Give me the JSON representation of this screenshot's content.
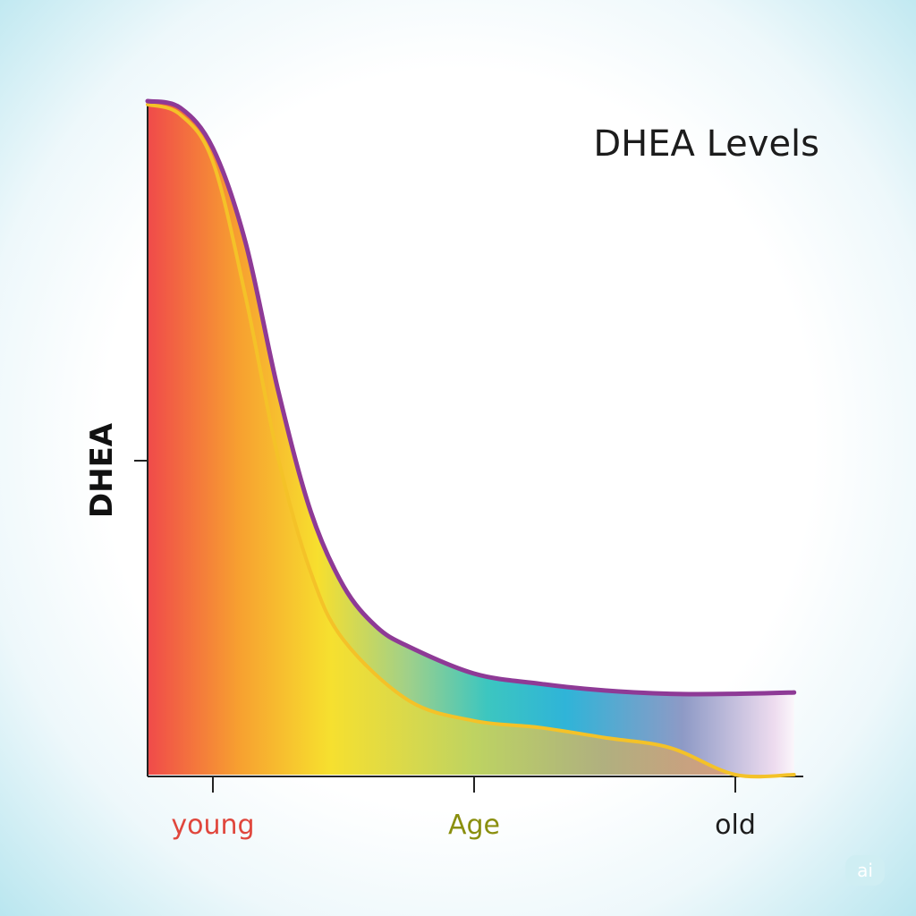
{
  "chart_data": {
    "type": "area",
    "title": "DHEA Levels",
    "ylabel": "DHEA",
    "xlabel": "Age",
    "x_ticks": [
      {
        "label": "young",
        "x": 0.1,
        "color": "#e0463c"
      },
      {
        "label": "Age",
        "x": 0.5,
        "color": "#8a8f0e"
      },
      {
        "label": "old",
        "x": 0.9,
        "color": "#1c1c1c"
      }
    ],
    "xlim": [
      0,
      1
    ],
    "ylim": [
      0,
      1
    ],
    "grid": false,
    "series": [
      {
        "x": [
          0,
          0.05,
          0.1,
          0.15,
          0.2,
          0.25,
          0.3,
          0.4,
          0.5,
          0.6,
          0.7,
          0.8,
          0.9,
          0.99
        ],
        "y": [
          0.995,
          0.98,
          0.91,
          0.71,
          0.47,
          0.3,
          0.2,
          0.11,
          0.08,
          0.07,
          0.055,
          0.04,
          0.0,
          0.0
        ],
        "color": "#f4c228"
      },
      {
        "x": [
          0,
          0.05,
          0.1,
          0.15,
          0.2,
          0.25,
          0.3,
          0.35,
          0.4,
          0.5,
          0.6,
          0.7,
          0.8,
          0.9,
          0.99
        ],
        "y": [
          1.0,
          0.99,
          0.93,
          0.79,
          0.57,
          0.39,
          0.28,
          0.22,
          0.19,
          0.15,
          0.135,
          0.125,
          0.12,
          0.12,
          0.122
        ],
        "color": "#8e3a96"
      }
    ]
  },
  "badge": {
    "label": "ai"
  }
}
